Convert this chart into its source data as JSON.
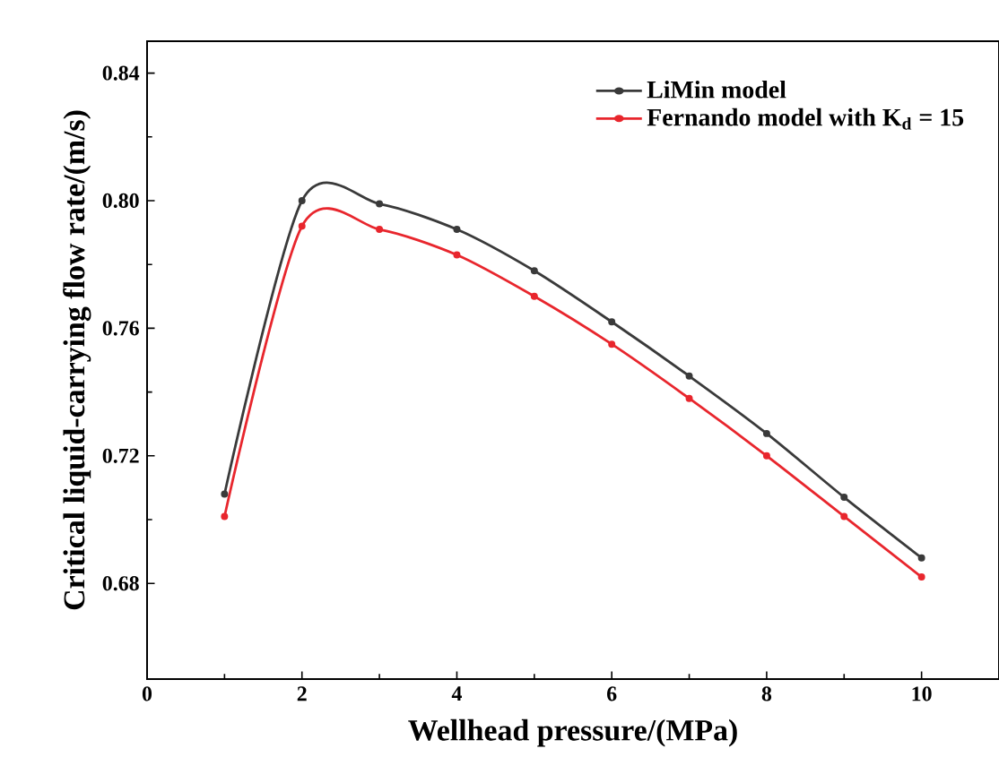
{
  "chart_data": {
    "type": "line",
    "xlabel": "Wellhead pressure/(MPa)",
    "ylabel": "Critical liquid-carrying flow rate/(m/s)",
    "x": [
      1,
      2,
      3,
      4,
      5,
      6,
      7,
      8,
      9,
      10
    ],
    "series": [
      {
        "name": "LiMin model",
        "color": "#3a3a3a",
        "values": [
          0.708,
          0.8,
          0.799,
          0.791,
          0.778,
          0.762,
          0.745,
          0.727,
          0.707,
          0.688
        ]
      },
      {
        "name": "Fernando model with K$_{d}$ = 15",
        "color": "#e8262d",
        "values": [
          0.701,
          0.792,
          0.791,
          0.783,
          0.77,
          0.755,
          0.738,
          0.72,
          0.701,
          0.682
        ]
      }
    ],
    "xlim": [
      0,
      11
    ],
    "ylim": [
      0.65,
      0.85
    ],
    "xticks": [
      0,
      2,
      4,
      6,
      8,
      10
    ],
    "yticks": [
      {
        "value": 0.68,
        "label": "0.68"
      },
      {
        "value": 0.72,
        "label": "0.72"
      },
      {
        "value": 0.76,
        "label": "0.76"
      },
      {
        "value": 0.8,
        "label": "0.80"
      },
      {
        "value": 0.84,
        "label": "0.84"
      }
    ],
    "legend": "top right",
    "marker": "circle",
    "line_style": "solid",
    "grid": false
  }
}
